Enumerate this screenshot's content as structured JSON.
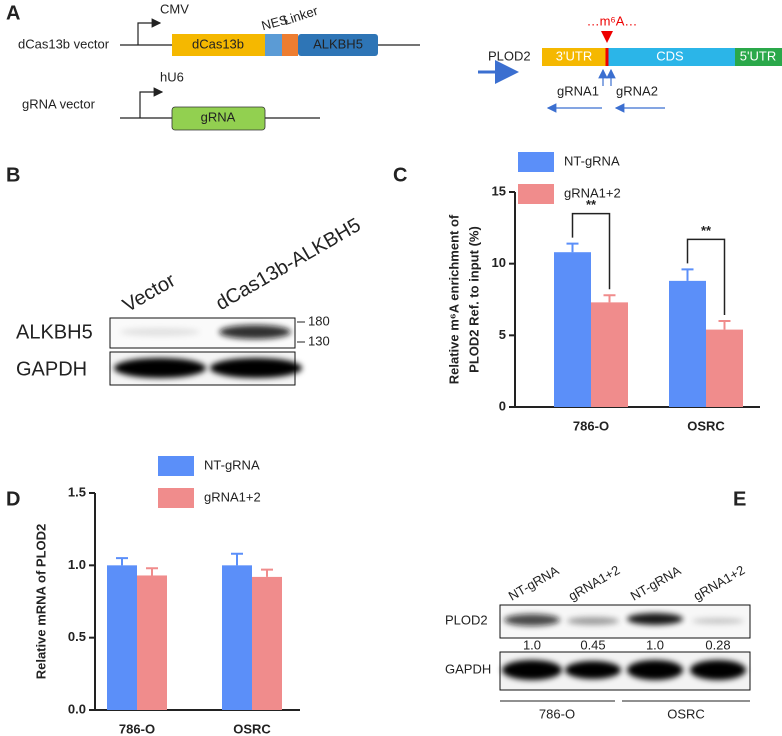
{
  "panel_a": {
    "label": "A",
    "dcas_vector": "dCas13b vector",
    "cmv": "CMV",
    "dcas13b": "dCas13b",
    "nes": "NES",
    "linker": "Linker",
    "alkbh5": "ALKBH5",
    "grna_vector": "gRNA vector",
    "hu6": "hU6",
    "grna": "gRNA",
    "plod2": "PLOD2",
    "m6a": "…m⁶A…",
    "utr3": "3'UTR",
    "cds": "CDS",
    "utr5": "5'UTR",
    "grna1": "gRNA1",
    "grna2": "gRNA2"
  },
  "panel_b": {
    "label": "B",
    "lanes": [
      "Vector",
      "dCas13b-ALKBH5"
    ],
    "rows": [
      "ALKBH5",
      "GAPDH"
    ],
    "markers": [
      "180",
      "130"
    ]
  },
  "panel_c": {
    "label": "C"
  },
  "panel_d": {
    "label": "D"
  },
  "panel_e": {
    "label": "E",
    "lanes": [
      "NT-gRNA",
      "gRNA1+2",
      "NT-gRNA",
      "gRNA1+2"
    ],
    "rows": [
      "PLOD2",
      "GAPDH"
    ],
    "quant": [
      "1.0",
      "0.45",
      "1.0",
      "0.28"
    ],
    "groups": [
      "786-O",
      "OSRC"
    ]
  },
  "chart_data": [
    {
      "type": "bar",
      "ylabel": [
        "Relative  m⁶A enrichment of",
        "PLOD2 Ref. to input (%)"
      ],
      "categories": [
        "786-O",
        "OSRC"
      ],
      "series": [
        {
          "name": "NT-gRNA",
          "color": "#5b8ff9",
          "values": [
            10.8,
            8.8
          ],
          "errors": [
            0.6,
            0.8
          ]
        },
        {
          "name": "gRNA1+2",
          "color": "#f08c8c",
          "values": [
            7.3,
            5.4
          ],
          "errors": [
            0.5,
            0.6
          ]
        }
      ],
      "annotations": [
        "**",
        "**"
      ],
      "ylim": [
        0,
        15
      ],
      "yticks": [
        0,
        5,
        10,
        15
      ]
    },
    {
      "type": "bar",
      "ylabel": [
        "Relative mRNA of PLOD2"
      ],
      "categories": [
        "786-O",
        "OSRC"
      ],
      "series": [
        {
          "name": "NT-gRNA",
          "color": "#5b8ff9",
          "values": [
            1.0,
            1.0
          ],
          "errors": [
            0.05,
            0.08
          ]
        },
        {
          "name": "gRNA1+2",
          "color": "#f08c8c",
          "values": [
            0.93,
            0.92
          ],
          "errors": [
            0.05,
            0.05
          ]
        }
      ],
      "ylim": [
        0,
        1.5
      ],
      "yticks": [
        {
          "value": 0,
          "label": "0.0"
        },
        {
          "value": 0.5,
          "label": "0.5"
        },
        {
          "value": 1.0,
          "label": "1.0"
        },
        {
          "value": 1.5,
          "label": "1.5"
        }
      ]
    }
  ]
}
